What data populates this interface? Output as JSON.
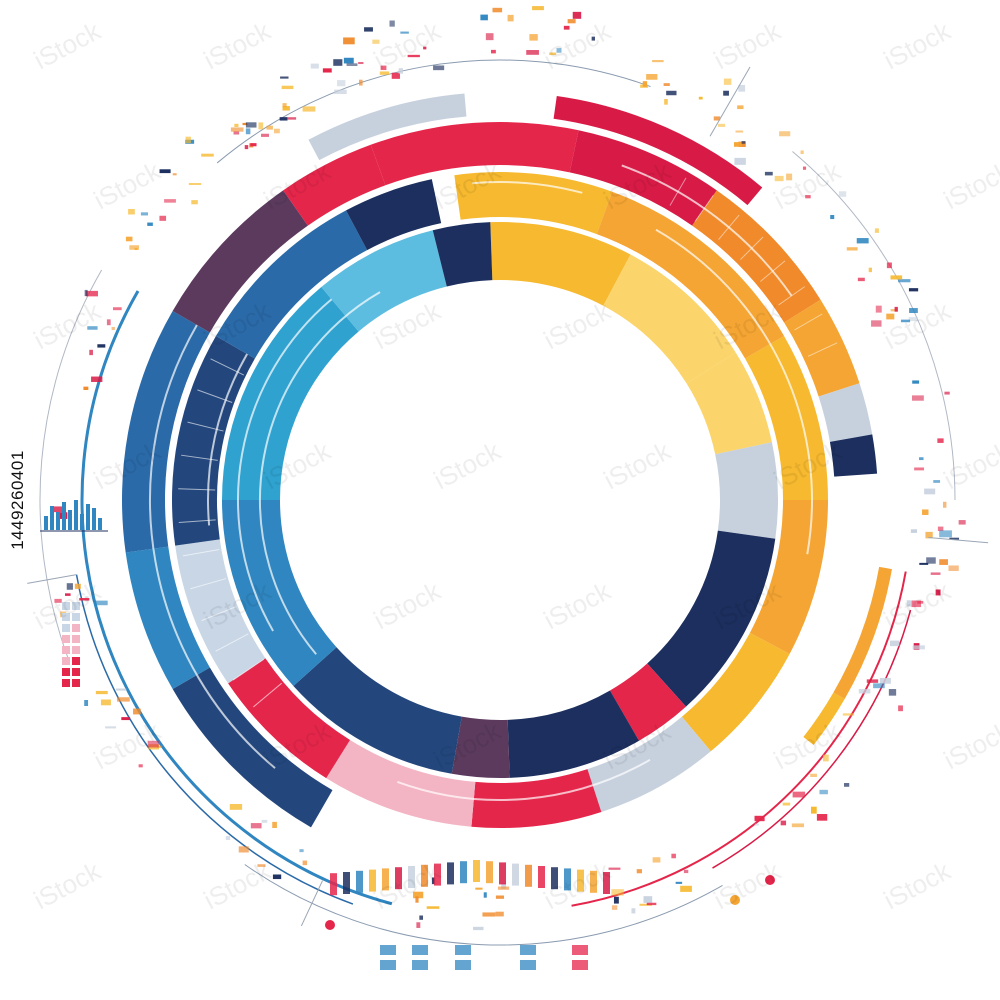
{
  "palette": {
    "navy": "#1c2f5e",
    "deep_blue": "#23477d",
    "blue": "#2a6aa8",
    "mid_blue": "#2f86c0",
    "cyan": "#2fa2cf",
    "sky": "#5cbde0",
    "pale_blue": "#c8d6e6",
    "light_grey": "#c7d1de",
    "red": "#e5264b",
    "crimson": "#d81b46",
    "pink": "#f3b4c4",
    "plum": "#5b3a5e",
    "orange": "#f08a2a",
    "light_orange": "#f5a533",
    "yellow": "#f6b92f",
    "light_yellow": "#fbd46b",
    "pale_yellow": "#fde7a3"
  },
  "watermark": {
    "text": "iStock"
  },
  "stock_id": {
    "text": "1449260401"
  }
}
